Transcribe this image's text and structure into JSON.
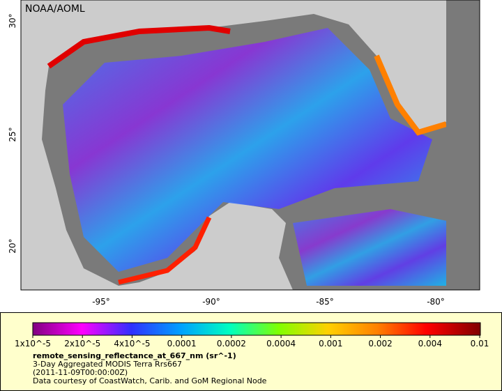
{
  "map": {
    "watermark": "NOAA/AOML",
    "x_labels": [
      "-95°",
      "-90°",
      "-85°",
      "-80°"
    ],
    "y_labels": [
      "30°",
      "25°",
      "20°"
    ]
  },
  "legend": {
    "tick_labels": [
      "1x10^-5",
      "2x10^-5",
      "4x10^-5",
      "0.0001",
      "0.0002",
      "0.0004",
      "0.001",
      "0.002",
      "0.004",
      "0.01"
    ],
    "title": "remote_sensing_reflectance_at_667_nm (sr^-1)",
    "lines": [
      "3-Day Aggregated MODIS Terra Rrs667",
      "(2011-11-09T00:00:00Z)",
      "Data courtesy of CoastWatch, Carib. and GoM Regional Node"
    ]
  }
}
